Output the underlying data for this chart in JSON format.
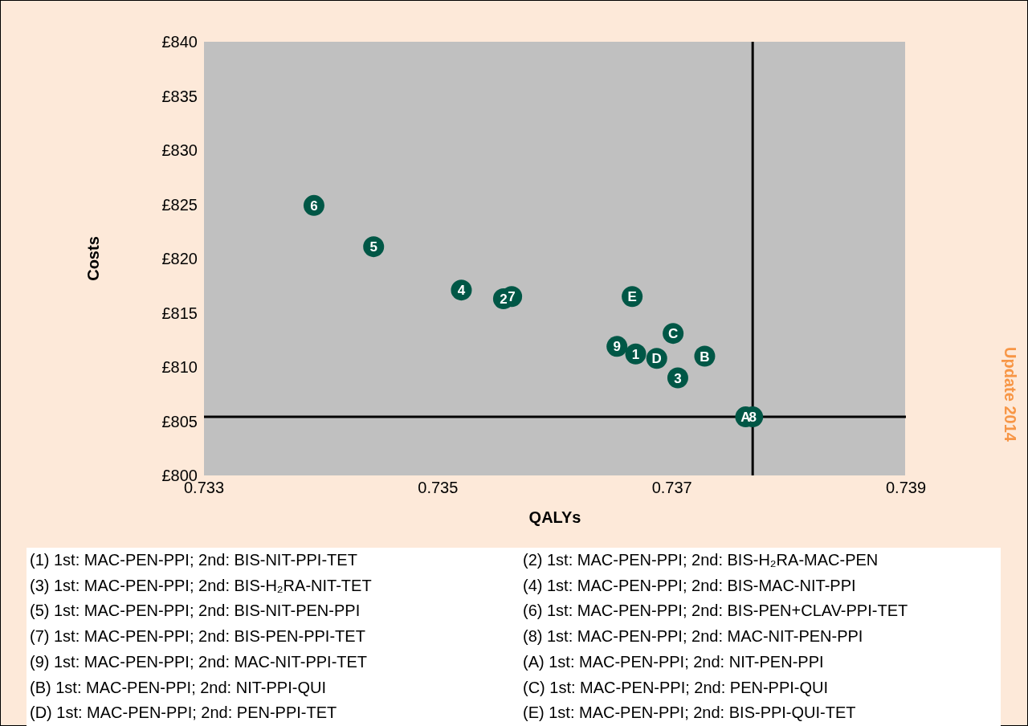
{
  "chart_data": {
    "type": "scatter",
    "xlabel": "QALYs",
    "ylabel": "Costs",
    "xlim": [
      0.733,
      0.739
    ],
    "xticks": [
      0.733,
      0.735,
      0.737,
      0.739
    ],
    "ylim": [
      800,
      840
    ],
    "yticks": [
      {
        "value": 800,
        "label": "£800"
      },
      {
        "value": 805,
        "label": "£805"
      },
      {
        "value": 810,
        "label": "£810"
      },
      {
        "value": 815,
        "label": "£815"
      },
      {
        "value": 820,
        "label": "£820"
      },
      {
        "value": 825,
        "label": "£825"
      },
      {
        "value": 830,
        "label": "£830"
      },
      {
        "value": 835,
        "label": "£835"
      },
      {
        "value": 840,
        "label": "£840"
      }
    ],
    "grid": false,
    "legend": false,
    "marker": "circle",
    "series": [
      {
        "name": "6",
        "color": "#005746",
        "x": [
          0.73394
        ],
        "values": [
          824.9
        ]
      },
      {
        "name": "5",
        "color": "#005746",
        "x": [
          0.73445
        ],
        "values": [
          821.1
        ]
      },
      {
        "name": "4",
        "color": "#005746",
        "x": [
          0.7352
        ],
        "values": [
          817.1
        ]
      },
      {
        "name": "2",
        "color": "#005746",
        "x": [
          0.73556
        ],
        "values": [
          816.3
        ]
      },
      {
        "name": "7",
        "color": "#005746",
        "x": [
          0.73563
        ],
        "values": [
          816.5
        ]
      },
      {
        "name": "E",
        "color": "#005746",
        "x": [
          0.73666
        ],
        "values": [
          816.5
        ]
      },
      {
        "name": "C",
        "color": "#005746",
        "x": [
          0.73701
        ],
        "values": [
          813.1
        ]
      },
      {
        "name": "9",
        "color": "#005746",
        "x": [
          0.73653
        ],
        "values": [
          811.9
        ]
      },
      {
        "name": "1",
        "color": "#005746",
        "x": [
          0.73669
        ],
        "values": [
          811.2
        ]
      },
      {
        "name": "D",
        "color": "#005746",
        "x": [
          0.73687
        ],
        "values": [
          810.8
        ]
      },
      {
        "name": "B",
        "color": "#005746",
        "x": [
          0.73728
        ],
        "values": [
          811.0
        ]
      },
      {
        "name": "3",
        "color": "#005746",
        "x": [
          0.73705
        ],
        "values": [
          809.0
        ]
      },
      {
        "name": "A",
        "color": "#005746",
        "x": [
          0.73763
        ],
        "values": [
          805.4
        ]
      },
      {
        "name": "8",
        "color": "#005746",
        "x": [
          0.73769
        ],
        "values": [
          805.4
        ]
      }
    ],
    "ref_lines": [
      {
        "axis": "x",
        "value": 0.73769,
        "color": "#000000"
      },
      {
        "axis": "y",
        "value": 805.4,
        "color": "#000000"
      }
    ],
    "annotations": [
      "(1) 1st: MAC-PEN-PPI; 2nd: BIS-NIT-PPI-TET",
      "(2) 1st: MAC-PEN-PPI; 2nd: BIS-H₂RA-MAC-PEN",
      "(3) 1st: MAC-PEN-PPI; 2nd: BIS-H₂RA-NIT-TET",
      "(4) 1st: MAC-PEN-PPI; 2nd: BIS-MAC-NIT-PPI",
      "(5) 1st: MAC-PEN-PPI; 2nd: BIS-NIT-PEN-PPI",
      "(6) 1st: MAC-PEN-PPI; 2nd: BIS-PEN+CLAV-PPI-TET",
      "(7) 1st: MAC-PEN-PPI; 2nd: BIS-PEN-PPI-TET",
      "(8) 1st: MAC-PEN-PPI; 2nd: MAC-NIT-PEN-PPI",
      "(9) 1st: MAC-PEN-PPI; 2nd: MAC-NIT-PPI-TET",
      "(A) 1st: MAC-PEN-PPI; 2nd: NIT-PEN-PPI",
      "(B) 1st: MAC-PEN-PPI; 2nd: NIT-PPI-QUI",
      "(C) 1st: MAC-PEN-PPI; 2nd: PEN-PPI-QUI",
      "(D) 1st: MAC-PEN-PPI; 2nd: PEN-PPI-TET",
      "(E) 1st: MAC-PEN-PPI; 2nd: BIS-PPI-QUI-TET",
      "Update 2014"
    ]
  }
}
